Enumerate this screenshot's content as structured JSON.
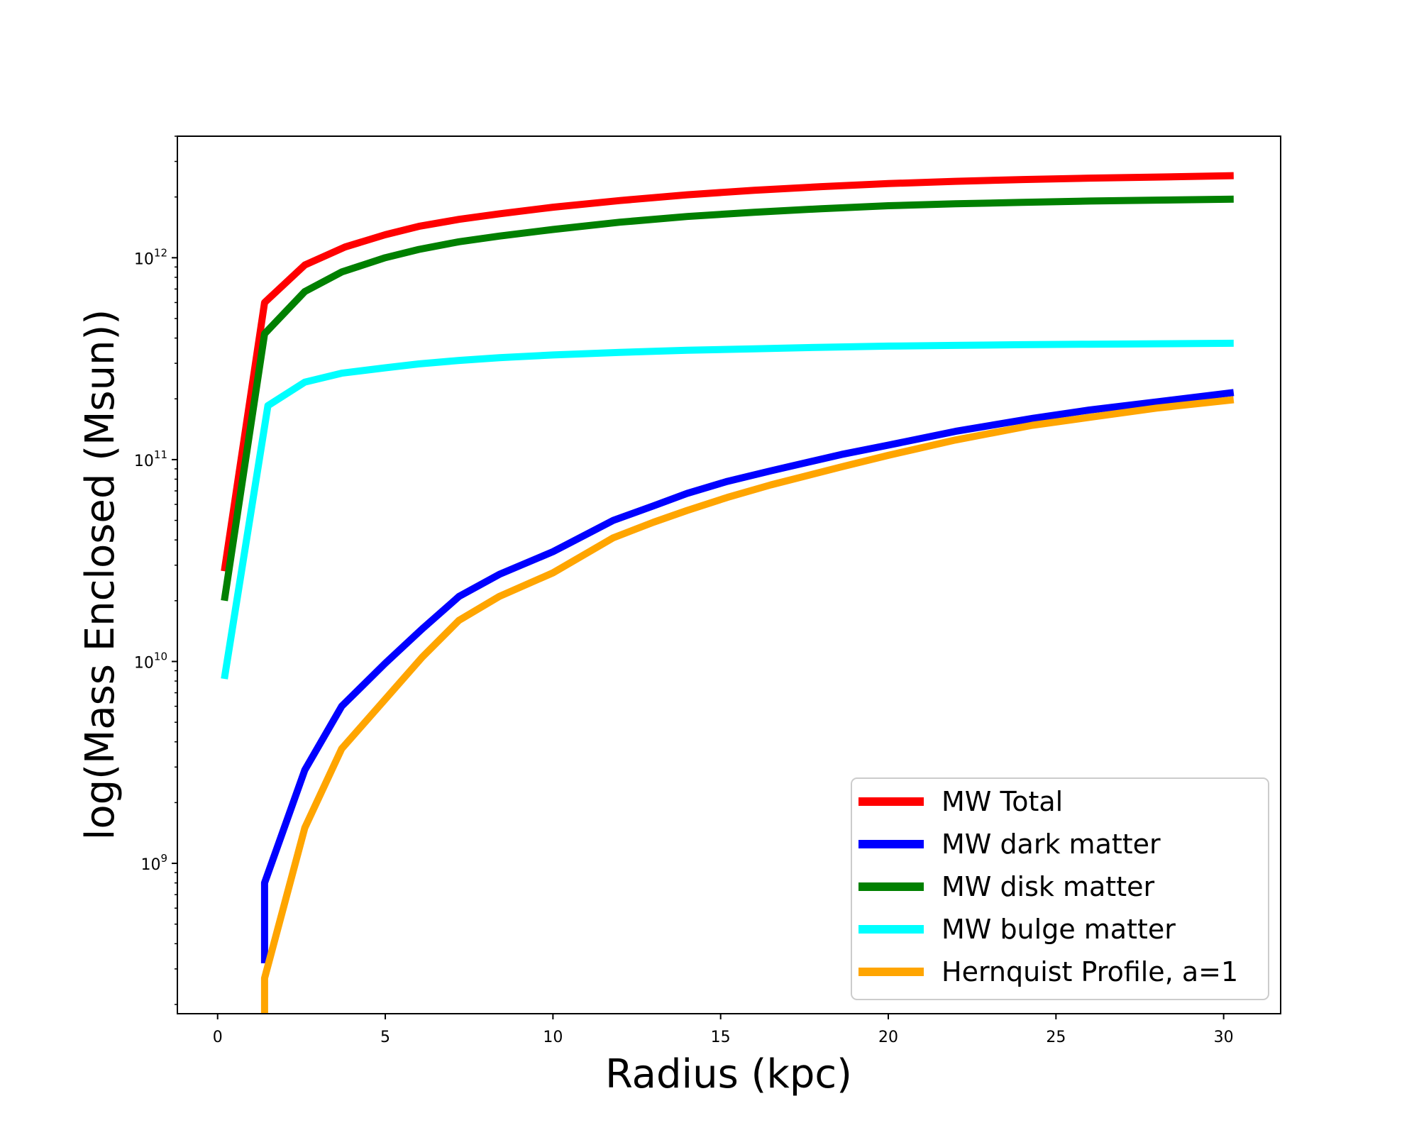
{
  "chart_data": {
    "type": "line",
    "xlabel": "Radius (kpc)",
    "ylabel": "log(Mass Enclosed (Msun))",
    "xlim": [
      -1.2,
      31.7
    ],
    "ylim": [
      180000000.0,
      4000000000000.0
    ],
    "yscale": "log",
    "x_ticks": [
      0,
      5,
      10,
      15,
      20,
      25,
      30
    ],
    "x_tick_labels": [
      "0",
      "5",
      "10",
      "15",
      "20",
      "25",
      "30"
    ],
    "y_ticks": [
      1000000000.0,
      10000000000.0,
      100000000000.0,
      1000000000000.0
    ],
    "y_tick_labels": [
      {
        "base": "10",
        "exp": "9"
      },
      {
        "base": "10",
        "exp": "10"
      },
      {
        "base": "10",
        "exp": "11"
      },
      {
        "base": "10",
        "exp": "12"
      }
    ],
    "grid": false,
    "legend_position": "lower-right",
    "series": [
      {
        "name": "MW Total",
        "color": "#ff0000",
        "points": [
          [
            0.2,
            28000000000.0
          ],
          [
            1.4,
            600000000000.0
          ],
          [
            2.6,
            920000000000.0
          ],
          [
            3.8,
            1130000000000.0
          ],
          [
            5.0,
            1300000000000.0
          ],
          [
            6.0,
            1430000000000.0
          ],
          [
            7.2,
            1550000000000.0
          ],
          [
            8.4,
            1650000000000.0
          ],
          [
            10,
            1780000000000.0
          ],
          [
            12,
            1920000000000.0
          ],
          [
            14,
            2050000000000.0
          ],
          [
            16,
            2160000000000.0
          ],
          [
            18,
            2250000000000.0
          ],
          [
            20,
            2330000000000.0
          ],
          [
            22,
            2390000000000.0
          ],
          [
            24,
            2440000000000.0
          ],
          [
            26,
            2480000000000.0
          ],
          [
            28,
            2510000000000.0
          ],
          [
            30.3,
            2550000000000.0
          ]
        ]
      },
      {
        "name": "MW dark matter",
        "color": "#0000ff",
        "points": [
          [
            1.4,
            320000000.0
          ],
          [
            1.4,
            800000000.0
          ],
          [
            2.6,
            2900000000.0
          ],
          [
            3.7,
            6000000000.0
          ],
          [
            5.0,
            9800000000.0
          ],
          [
            6.1,
            14500000000.0
          ],
          [
            7.2,
            21000000000.0
          ],
          [
            8.4,
            27000000000.0
          ],
          [
            10,
            35000000000.0
          ],
          [
            11.8,
            50000000000.0
          ],
          [
            13,
            59000000000.0
          ],
          [
            14,
            68000000000.0
          ],
          [
            15.2,
            78000000000.0
          ],
          [
            16.5,
            88000000000.0
          ],
          [
            18.6,
            106000000000.0
          ],
          [
            20,
            118000000000.0
          ],
          [
            22,
            138000000000.0
          ],
          [
            24.3,
            160000000000.0
          ],
          [
            26,
            176000000000.0
          ],
          [
            28,
            193000000000.0
          ],
          [
            30.3,
            215000000000.0
          ]
        ]
      },
      {
        "name": "MW disk matter",
        "color": "#008000",
        "points": [
          [
            0.2,
            20000000000.0
          ],
          [
            1.4,
            420000000000.0
          ],
          [
            2.6,
            680000000000.0
          ],
          [
            3.7,
            850000000000.0
          ],
          [
            5.0,
            1000000000000.0
          ],
          [
            6.0,
            1100000000000.0
          ],
          [
            7.2,
            1200000000000.0
          ],
          [
            8.4,
            1280000000000.0
          ],
          [
            10,
            1380000000000.0
          ],
          [
            12,
            1500000000000.0
          ],
          [
            14,
            1600000000000.0
          ],
          [
            16,
            1680000000000.0
          ],
          [
            18,
            1750000000000.0
          ],
          [
            20,
            1810000000000.0
          ],
          [
            22,
            1850000000000.0
          ],
          [
            24,
            1880000000000.0
          ],
          [
            26,
            1910000000000.0
          ],
          [
            28,
            1930000000000.0
          ],
          [
            30.3,
            1950000000000.0
          ]
        ]
      },
      {
        "name": "MW bulge matter",
        "color": "#00ffff",
        "points": [
          [
            0.2,
            8200000000.0
          ],
          [
            1.5,
            185000000000.0
          ],
          [
            2.6,
            242000000000.0
          ],
          [
            3.7,
            268000000000.0
          ],
          [
            5.0,
            285000000000.0
          ],
          [
            6.0,
            298000000000.0
          ],
          [
            7.2,
            310000000000.0
          ],
          [
            8.4,
            320000000000.0
          ],
          [
            10,
            330000000000.0
          ],
          [
            12,
            340000000000.0
          ],
          [
            14,
            348000000000.0
          ],
          [
            16,
            354000000000.0
          ],
          [
            18,
            360000000000.0
          ],
          [
            20,
            365000000000.0
          ],
          [
            22,
            368000000000.0
          ],
          [
            24,
            371000000000.0
          ],
          [
            26,
            373000000000.0
          ],
          [
            28,
            375000000000.0
          ],
          [
            30.3,
            377000000000.0
          ]
        ]
      },
      {
        "name": "Hernquist Profile, a=1",
        "color": "#ffa500",
        "points": [
          [
            1.4,
            180000000.0
          ],
          [
            1.4,
            270000000.0
          ],
          [
            2.6,
            1500000000.0
          ],
          [
            3.7,
            3700000000.0
          ],
          [
            5.0,
            6500000000.0
          ],
          [
            6.1,
            10500000000.0
          ],
          [
            7.2,
            16000000000.0
          ],
          [
            8.4,
            21000000000.0
          ],
          [
            10,
            27500000000.0
          ],
          [
            11.8,
            41000000000.0
          ],
          [
            13,
            49000000000.0
          ],
          [
            14,
            56000000000.0
          ],
          [
            15.2,
            65000000000.0
          ],
          [
            16.5,
            75000000000.0
          ],
          [
            18.6,
            92000000000.0
          ],
          [
            20,
            105000000000.0
          ],
          [
            22,
            125000000000.0
          ],
          [
            24.3,
            148000000000.0
          ],
          [
            26,
            162000000000.0
          ],
          [
            28,
            180000000000.0
          ],
          [
            30.3,
            198000000000.0
          ]
        ]
      }
    ]
  }
}
